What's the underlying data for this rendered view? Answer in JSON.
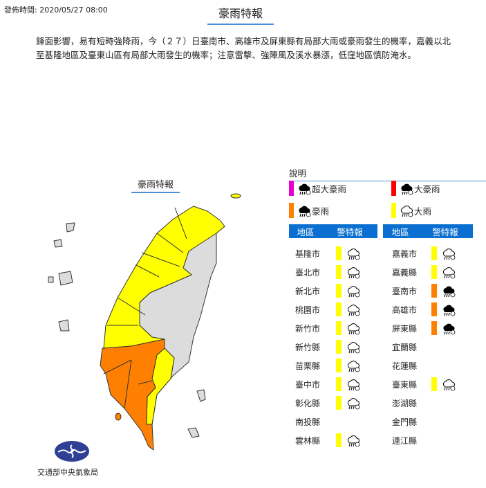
{
  "header": {
    "publish_time": "發佈時間: 2020/05/27 08:00",
    "title": "豪雨特報"
  },
  "description": "鋒面影響，易有短時強降雨，今（２７）日臺南市、高雄市及屏東縣有局部大雨或豪雨發生的機率，嘉義以北至基隆地區及臺東山區有局部大雨發生的機率；注意雷擊、強陣風及溪水暴漲，低窪地區慎防淹水。",
  "map": {
    "title": "豪雨特報"
  },
  "colors": {
    "super_torrential": "#e800d0",
    "extremely_torrential": "#ff0000",
    "torrential": "#ff7f00",
    "heavy": "#ffff00",
    "no_warning": "#dcdcdc",
    "header_blue": "#0a6fd0"
  },
  "legend": {
    "title": "說明",
    "items": [
      {
        "label": "超大豪雨",
        "color": "#e800d0",
        "icon": "cloud-heavy-rain-icon"
      },
      {
        "label": "大豪雨",
        "color": "#ff0000",
        "icon": "cloud-heavy-rain-icon"
      },
      {
        "label": "豪雨",
        "color": "#ff7f00",
        "icon": "cloud-rain-filled-icon"
      },
      {
        "label": "大雨",
        "color": "#ffff00",
        "icon": "cloud-rain-outline-icon"
      }
    ]
  },
  "table": {
    "col_region": "地區",
    "col_warning": "警特報",
    "left": [
      {
        "name": "基隆市",
        "level": "大雨"
      },
      {
        "name": "臺北市",
        "level": "大雨"
      },
      {
        "name": "新北市",
        "level": "大雨"
      },
      {
        "name": "桃園市",
        "level": "大雨"
      },
      {
        "name": "新竹市",
        "level": "大雨"
      },
      {
        "name": "新竹縣",
        "level": "大雨"
      },
      {
        "name": "苗栗縣",
        "level": "大雨"
      },
      {
        "name": "臺中市",
        "level": "大雨"
      },
      {
        "name": "彰化縣",
        "level": "大雨"
      },
      {
        "name": "南投縣",
        "level": ""
      },
      {
        "name": "雲林縣",
        "level": "大雨"
      }
    ],
    "right": [
      {
        "name": "嘉義市",
        "level": "大雨"
      },
      {
        "name": "嘉義縣",
        "level": "大雨"
      },
      {
        "name": "臺南市",
        "level": "豪雨"
      },
      {
        "name": "高雄市",
        "level": "豪雨"
      },
      {
        "name": "屏東縣",
        "level": "豪雨"
      },
      {
        "name": "宜蘭縣",
        "level": ""
      },
      {
        "name": "花蓮縣",
        "level": ""
      },
      {
        "name": "臺東縣",
        "level": "大雨"
      },
      {
        "name": "澎湖縣",
        "level": ""
      },
      {
        "name": "金門縣",
        "level": ""
      },
      {
        "name": "連江縣",
        "level": ""
      }
    ]
  },
  "footer": {
    "agency": "交通部中央氣象局"
  }
}
